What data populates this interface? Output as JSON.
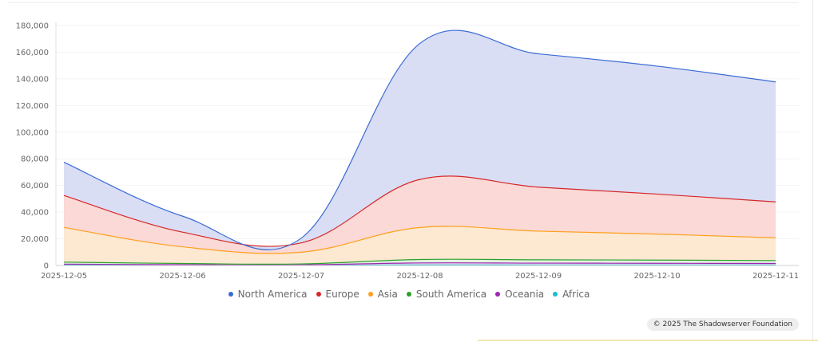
{
  "chart_data": {
    "type": "area",
    "stacked": true,
    "title": "",
    "xlabel": "",
    "ylabel": "",
    "ylim": [
      0,
      180000
    ],
    "y_ticks": [
      0,
      20000,
      40000,
      60000,
      80000,
      100000,
      120000,
      140000,
      160000,
      180000
    ],
    "y_tick_labels": [
      "0",
      "20,000",
      "40,000",
      "60,000",
      "80,000",
      "100,000",
      "120,000",
      "140,000",
      "160,000",
      "180,000"
    ],
    "categories": [
      "2025-12-05",
      "2025-12-06",
      "2025-12-07",
      "2025-12-08",
      "2025-12-09",
      "2025-12-10",
      "2025-12-11"
    ],
    "series": [
      {
        "name": "Africa",
        "color": "#17becf",
        "values": [
          300,
          200,
          150,
          400,
          350,
          350,
          300
        ]
      },
      {
        "name": "Oceania",
        "color": "#9c27b0",
        "values": [
          700,
          400,
          300,
          1500,
          1400,
          1300,
          1200
        ]
      },
      {
        "name": "South America",
        "color": "#2ca02c",
        "values": [
          1500,
          900,
          700,
          2600,
          2500,
          2400,
          2200
        ]
      },
      {
        "name": "Asia",
        "color": "#ff9f1c",
        "values": [
          26000,
          12500,
          8800,
          24000,
          21500,
          19500,
          17000
        ]
      },
      {
        "name": "Europe",
        "color": "#d62728",
        "values": [
          24000,
          11000,
          7000,
          36000,
          33000,
          30000,
          27000
        ]
      },
      {
        "name": "North America",
        "color": "#3a6bd4",
        "values": [
          25000,
          12000,
          3500,
          102000,
          100000,
          96000,
          90000
        ]
      }
    ],
    "legend_position": "bottom",
    "legend_order": [
      "North America",
      "Europe",
      "Asia",
      "South America",
      "Oceania",
      "Africa"
    ]
  },
  "credit": "© 2025 The Shadowserver Foundation"
}
